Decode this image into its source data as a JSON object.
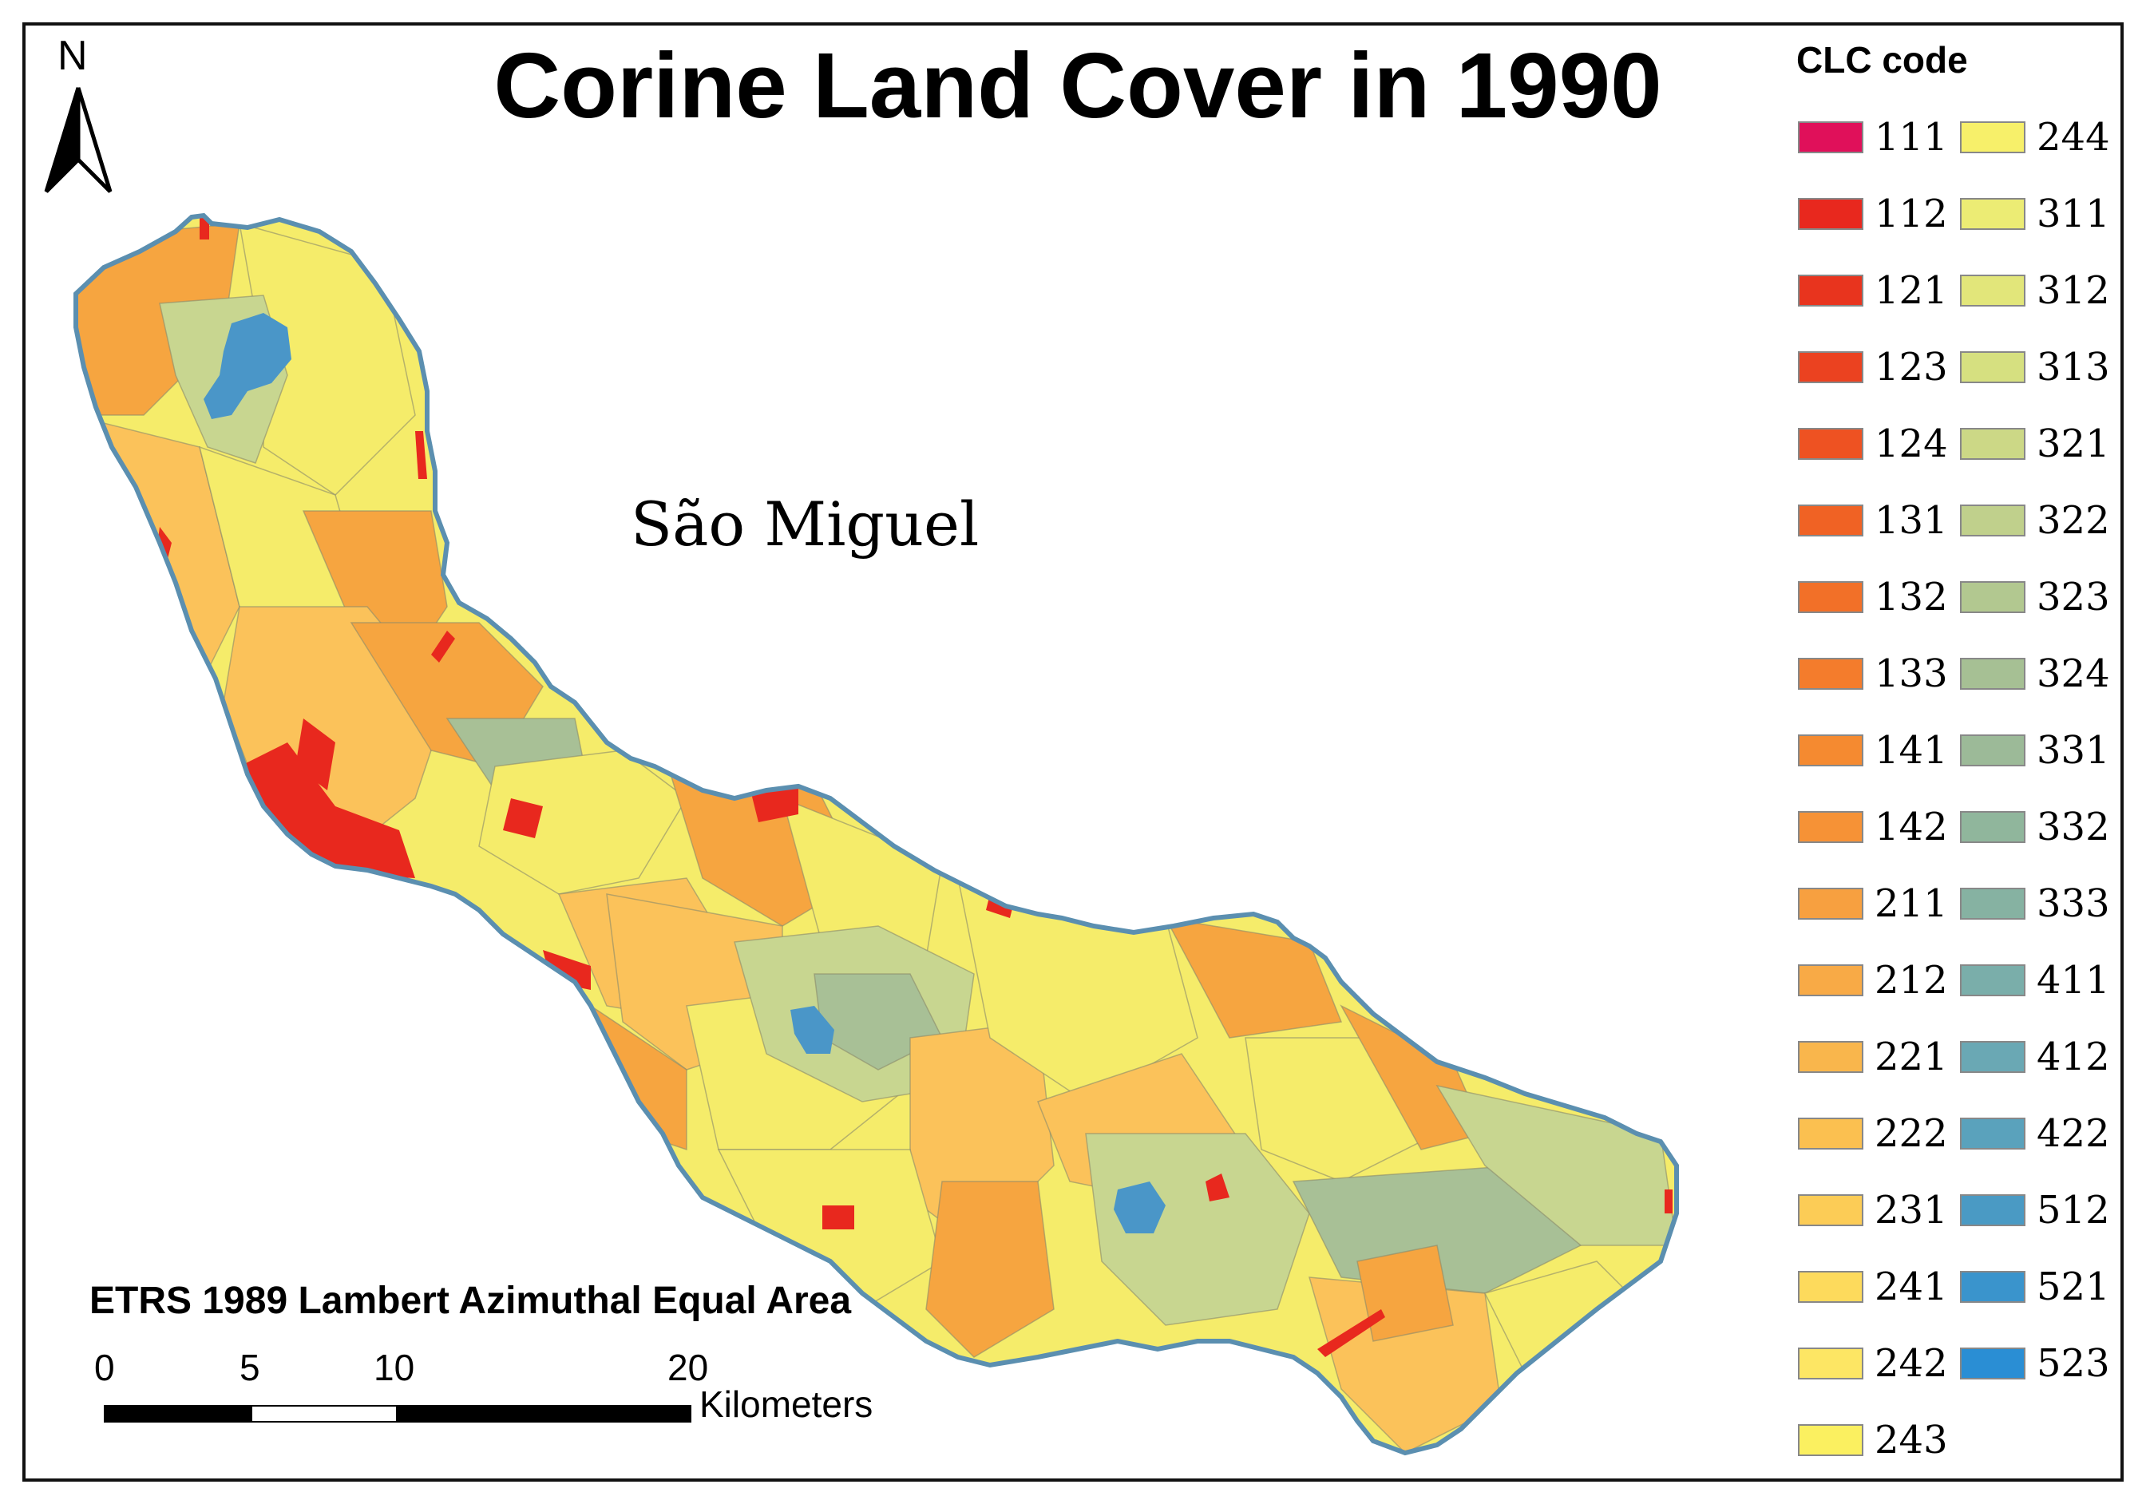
{
  "title": "Corine Land Cover in 1990",
  "island_label": "São Miguel",
  "north_label": "N",
  "projection": "ETRS 1989 Lambert Azimuthal Equal Area",
  "scale_bar": {
    "ticks": [
      "0",
      "5",
      "10",
      "20"
    ],
    "unit": "Kilometers"
  },
  "legend": {
    "title": "CLC code",
    "left_column": [
      {
        "code": "111",
        "color": "#e0105a"
      },
      {
        "code": "112",
        "color": "#e8281e"
      },
      {
        "code": "121",
        "color": "#e8341e"
      },
      {
        "code": "123",
        "color": "#eb4220"
      },
      {
        "code": "124",
        "color": "#ee5222"
      },
      {
        "code": "131",
        "color": "#f06224"
      },
      {
        "code": "132",
        "color": "#f27028"
      },
      {
        "code": "133",
        "color": "#f47c2c"
      },
      {
        "code": "141",
        "color": "#f58a30"
      },
      {
        "code": "142",
        "color": "#f69236"
      },
      {
        "code": "211",
        "color": "#f7a040"
      },
      {
        "code": "212",
        "color": "#f8aa46"
      },
      {
        "code": "221",
        "color": "#f9b64c"
      },
      {
        "code": "222",
        "color": "#fbc050"
      },
      {
        "code": "231",
        "color": "#fccc56"
      },
      {
        "code": "241",
        "color": "#fdda5c"
      },
      {
        "code": "242",
        "color": "#fde664"
      },
      {
        "code": "243",
        "color": "#fbf060"
      }
    ],
    "right_column": [
      {
        "code": "244",
        "color": "#f7f06a"
      },
      {
        "code": "311",
        "color": "#ecec74"
      },
      {
        "code": "312",
        "color": "#e2e67a"
      },
      {
        "code": "313",
        "color": "#d6e080"
      },
      {
        "code": "321",
        "color": "#ccd886"
      },
      {
        "code": "322",
        "color": "#c0d08c"
      },
      {
        "code": "323",
        "color": "#b2c890"
      },
      {
        "code": "324",
        "color": "#a6c094"
      },
      {
        "code": "331",
        "color": "#9cba98"
      },
      {
        "code": "332",
        "color": "#90b69c"
      },
      {
        "code": "333",
        "color": "#86b2a2"
      },
      {
        "code": "411",
        "color": "#7aaeaa"
      },
      {
        "code": "412",
        "color": "#6aa8b4"
      },
      {
        "code": "422",
        "color": "#5aa2bc"
      },
      {
        "code": "512",
        "color": "#4a9ac4"
      },
      {
        "code": "521",
        "color": "#3a94cc"
      },
      {
        "code": "523",
        "color": "#2a8ed4"
      }
    ]
  },
  "map_colors": {
    "coast": "#5b8fb0",
    "lake": "#4a96c8",
    "urban": "#e8281e",
    "orange": "#f6a540",
    "light_orange": "#fbc25a",
    "yellow": "#f5ec6a",
    "green": "#c8d690",
    "sage": "#a8c096"
  }
}
